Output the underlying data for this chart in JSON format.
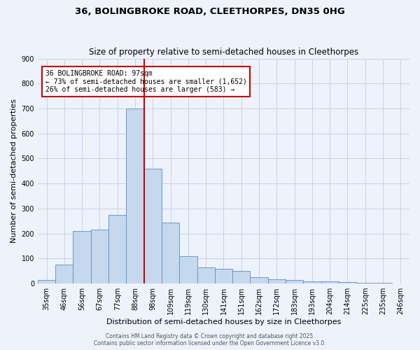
{
  "title1": "36, BOLINGBROKE ROAD, CLEETHORPES, DN35 0HG",
  "title2": "Size of property relative to semi-detached houses in Cleethorpes",
  "xlabel": "Distribution of semi-detached houses by size in Cleethorpes",
  "ylabel": "Number of semi-detached properties",
  "categories": [
    "35sqm",
    "46sqm",
    "56sqm",
    "67sqm",
    "77sqm",
    "88sqm",
    "98sqm",
    "109sqm",
    "119sqm",
    "130sqm",
    "141sqm",
    "151sqm",
    "162sqm",
    "172sqm",
    "183sqm",
    "193sqm",
    "204sqm",
    "214sqm",
    "225sqm",
    "235sqm",
    "246sqm"
  ],
  "values": [
    13,
    75,
    210,
    215,
    275,
    700,
    460,
    245,
    110,
    65,
    60,
    50,
    25,
    17,
    15,
    10,
    8,
    5,
    2,
    3,
    1
  ],
  "bar_color": "#c5d8ee",
  "bar_edge_color": "#5a8fc4",
  "bg_color": "#eef2fb",
  "grid_color": "#c8d0e8",
  "vline_color": "#cc0000",
  "vline_pos": 5.5,
  "annotation_title": "36 BOLINGBROKE ROAD: 97sqm",
  "annotation_line1": "← 73% of semi-detached houses are smaller (1,652)",
  "annotation_line2": "26% of semi-detached houses are larger (583) →",
  "annotation_box_color": "#cc0000",
  "ylim": [
    0,
    900
  ],
  "yticks": [
    0,
    100,
    200,
    300,
    400,
    500,
    600,
    700,
    800,
    900
  ],
  "footer1": "Contains HM Land Registry data © Crown copyright and database right 2025.",
  "footer2": "Contains public sector information licensed under the Open Government Licence v3.0."
}
